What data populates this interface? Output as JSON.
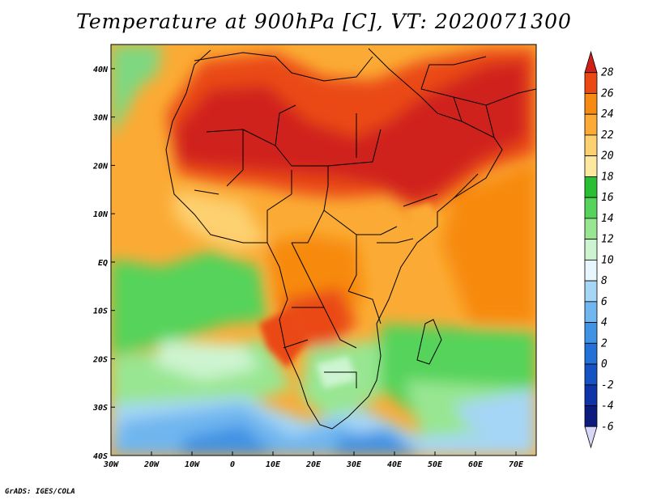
{
  "title": "Temperature at 900hPa [C], VT: 2020071300",
  "credit": "GrADS: IGES/COLA",
  "map": {
    "lon_ticks": [
      "30W",
      "20W",
      "10W",
      "0",
      "10E",
      "20E",
      "30E",
      "40E",
      "50E",
      "60E",
      "70E"
    ],
    "lat_ticks": [
      "40N",
      "30N",
      "20N",
      "10N",
      "EQ",
      "10S",
      "20S",
      "30S",
      "40S"
    ],
    "lon_range": [
      -30,
      75
    ],
    "lat_range": [
      -40,
      45
    ]
  },
  "colorbar": {
    "labels": [
      "28",
      "26",
      "24",
      "22",
      "20",
      "18",
      "16",
      "14",
      "12",
      "10",
      "8",
      "6",
      "4",
      "2",
      "0",
      "-2",
      "-4",
      "-6"
    ],
    "colors": [
      "#d0201a",
      "#ea4a12",
      "#f78a10",
      "#fbab35",
      "#fdd070",
      "#fde8a0",
      "#28bf32",
      "#55d35a",
      "#98e692",
      "#cdf4d0",
      "#e7f7fd",
      "#a6d6f6",
      "#70b6ef",
      "#3f92e4",
      "#2270d8",
      "#1552c4",
      "#0f33a9",
      "#0b1b7e",
      "#d8d8f6"
    ]
  }
}
